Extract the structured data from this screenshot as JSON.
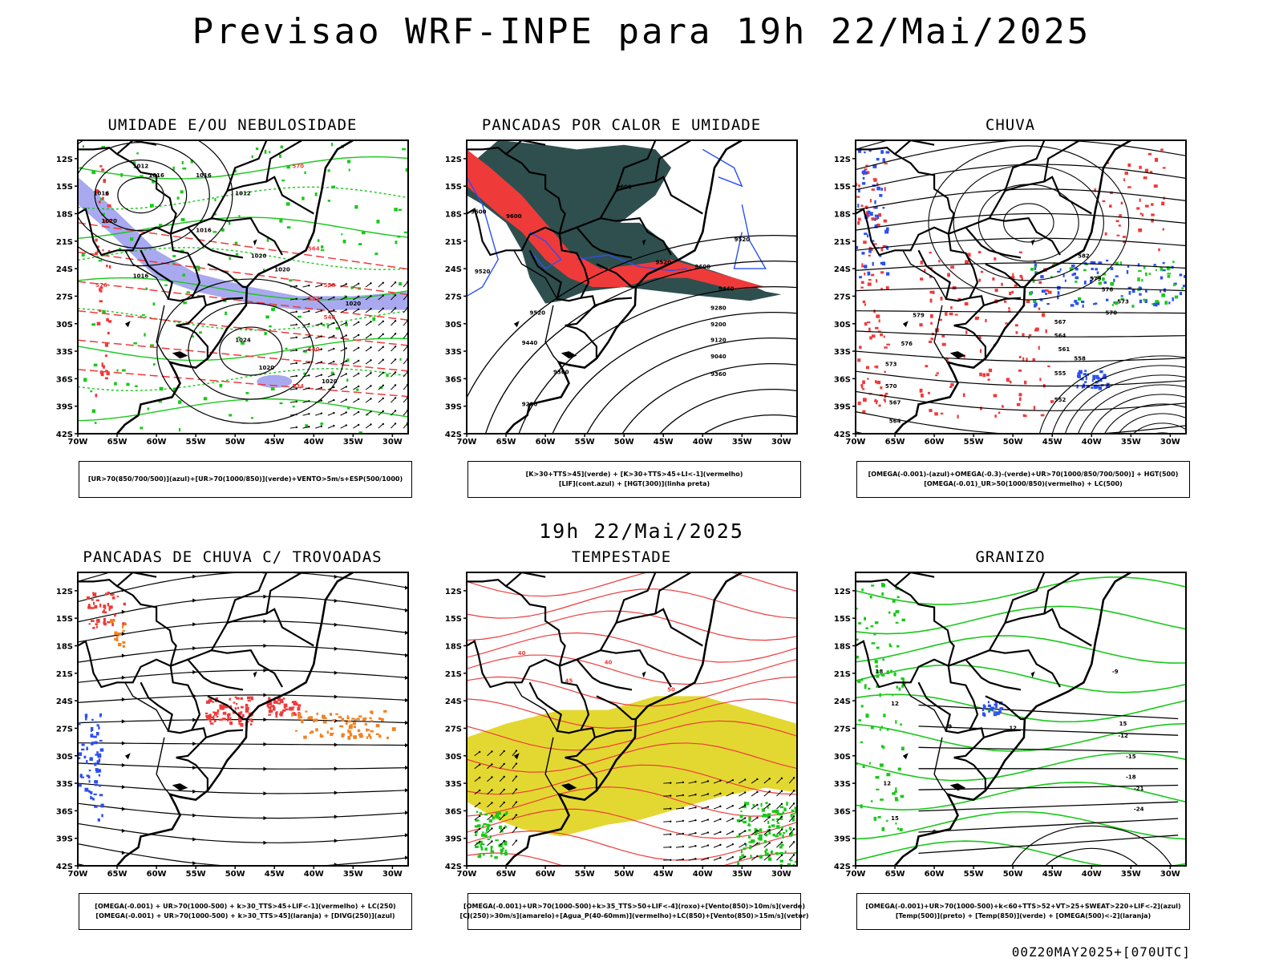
{
  "page": {
    "title": "Previsao WRF-INPE  para 19h 22/Mai/2025",
    "mid_title": "19h 22/Mai/2025",
    "footer": "00Z20MAY2025+[070UTC]"
  },
  "axes": {
    "lat_labels": [
      "12S",
      "15S",
      "18S",
      "21S",
      "24S",
      "27S",
      "30S",
      "33S",
      "36S",
      "39S",
      "42S"
    ],
    "lon_labels": [
      "70W",
      "65W",
      "60W",
      "55W",
      "50W",
      "45W",
      "40W",
      "35W",
      "30W"
    ]
  },
  "colors": {
    "red": "#ef3a3a",
    "green": "#19c819",
    "blue": "#2b50f0",
    "lavender": "#a9a9f0",
    "darkteal": "#2f4f4f",
    "yellow": "#e3d831",
    "orange": "#f08224"
  },
  "panels": [
    {
      "title": "UMIDADE E/OU NEBULOSIDADE",
      "legend": [
        "[UR>70(850/700/500)](azul)+[UR>70(1000/850)](verde)+VENTO>5m/s+ESP(500/1000)"
      ],
      "contour_labels": [
        "1016",
        "1012",
        "1016",
        "1012",
        "1016",
        "1020",
        "1016",
        "1020",
        "1020",
        "1016",
        "1020",
        "1024",
        "1020",
        "1020",
        "570",
        "564",
        "558",
        "552",
        "546",
        "540",
        "534",
        "576"
      ]
    },
    {
      "title": "PANCADAS POR CALOR E UMIDADE",
      "legend": [
        "[K>30+TTS>45](verde) + [K>30+TTS>45+LI<-1](vermelho)",
        "[LIF](cont.azul) + [HGT(300)](linha preta)"
      ],
      "contour_labels": [
        "9600",
        "9600",
        "9600",
        "9520",
        "9520",
        "9520",
        "9600",
        "9520",
        "9440",
        "9440",
        "9360",
        "9280",
        "9200",
        "9120",
        "9040",
        "9360",
        "9280"
      ]
    },
    {
      "title": "CHUVA",
      "legend": [
        "[OMEGA(-0.001)-(azul)+OMEGA(-0.3)-(verde)+UR>70(1000/850/700/500)] + HGT(500)",
        "[OMEGA(-0.01)_UR>50(1000/850)(vermelho) + LC(500)"
      ],
      "contour_labels": [
        "582",
        "579",
        "576",
        "573",
        "570",
        "567",
        "564",
        "561",
        "558",
        "555",
        "552",
        "579",
        "576",
        "573",
        "570",
        "567",
        "564"
      ]
    },
    {
      "title": "PANCADAS DE CHUVA C/ TROVOADAS",
      "legend": [
        "[OMEGA(-0.001) + UR>70(1000-500) + k>30_TTS>45+LIF<-1](vermelho) + LC(250)",
        "[OMEGA(-0.001) + UR>70(1000-500) + k>30_TTS>45](laranja) + [DIVG(250)](azul)"
      ],
      "contour_labels": []
    },
    {
      "title": "TEMPESTADE",
      "legend": [
        "[OMEGA(-0.001)+UR>70(1000-500)+k>35_TTS>50+LIF<-4](roxo)+[Vento(850)>10m/s](verde)",
        "[CJ(250)>30m/s](amarelo)+[Agua_P(40-60mm)](vermelho)+LC(850)+[Vento(850)>15m/s](vetor)"
      ],
      "contour_labels": [
        "40",
        "40",
        "45",
        "50"
      ]
    },
    {
      "title": "GRANIZO",
      "legend": [
        "[OMEGA(-0.001)+UR>70(1000-500)+k<60+TTS>52+VT>25+SWEAT>220+LIF<-2](azul)",
        "[Temp(500)](preto) + [Temp(850)](verde) + [OMEGA(500)<-2](laranja)"
      ],
      "contour_labels": [
        "-9",
        "-12",
        "-15",
        "-18",
        "-21",
        "-24",
        "12",
        "12",
        "15",
        "9",
        "12",
        "15",
        "18",
        "6"
      ]
    }
  ]
}
